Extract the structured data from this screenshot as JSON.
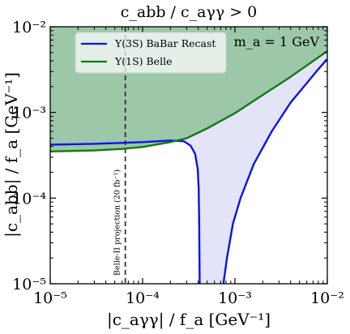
{
  "chart_data": {
    "type": "line",
    "title": "c_abb / c_aγγ > 0",
    "xlabel": "|c_aγγ| / f_a [GeV⁻¹]",
    "ylabel": "|c_abb| / f_a [GeV⁻¹]",
    "xscale": "log",
    "yscale": "log",
    "xlim": [
      1e-05,
      0.01
    ],
    "ylim": [
      1e-05,
      0.01
    ],
    "x_ticks": [
      {
        "value": 1e-05,
        "label": "10⁻⁵"
      },
      {
        "value": 0.0001,
        "label": "10⁻⁴"
      },
      {
        "value": 0.001,
        "label": "10⁻³"
      },
      {
        "value": 0.01,
        "label": "10⁻²"
      }
    ],
    "y_ticks": [
      {
        "value": 1e-05,
        "label": "10⁻⁵"
      },
      {
        "value": 0.0001,
        "label": "10⁻⁴"
      },
      {
        "value": 0.001,
        "label": "10⁻³"
      },
      {
        "value": 0.01,
        "label": "10⁻²"
      }
    ],
    "series": [
      {
        "name": "Υ(3S) BaBar Recast",
        "color": "#0a14e6",
        "segments": [
          [
            [
              1e-05,
              0.00042
            ],
            [
              3e-05,
              0.00043
            ],
            [
              0.0001,
              0.00045
            ],
            [
              0.0002,
              0.00047
            ],
            [
              0.00028,
              0.00046
            ],
            [
              0.00033,
              0.00041
            ],
            [
              0.00037,
              0.00033
            ],
            [
              0.000395,
              0.00022
            ],
            [
              0.000405,
              0.00013
            ],
            [
              0.00041,
              5e-05
            ],
            [
              0.000415,
              1e-05
            ]
          ],
          [
            [
              0.00075,
              1e-05
            ],
            [
              0.00082,
              2e-05
            ],
            [
              0.00095,
              5e-05
            ],
            [
              0.00115,
              0.0001
            ],
            [
              0.0016,
              0.00025
            ],
            [
              0.0025,
              0.0006
            ],
            [
              0.004,
              0.0013
            ],
            [
              0.006,
              0.0022
            ],
            [
              0.008,
              0.0032
            ],
            [
              0.01,
              0.0042
            ]
          ]
        ]
      },
      {
        "name": "Υ(1S) Belle",
        "color": "#127a12",
        "segments": [
          [
            [
              1e-05,
              0.00035
            ],
            [
              3e-05,
              0.00036
            ],
            [
              6e-05,
              0.000375
            ],
            [
              0.0001,
              0.000395
            ],
            [
              0.0002,
              0.00045
            ],
            [
              0.0003,
              0.0005
            ],
            [
              0.0005,
              0.00065
            ],
            [
              0.001,
              0.00098
            ],
            [
              0.002,
              0.0016
            ],
            [
              0.004,
              0.0026
            ],
            [
              0.01,
              0.0052
            ]
          ]
        ]
      }
    ],
    "excluded_region_color": "#9cc7a8",
    "allowed_region_color": "#e4e4f9",
    "reference_line": {
      "x": 6.5e-05,
      "label": "Belle-II projection (20 fb⁻¹)",
      "style": "dashed"
    },
    "annotation": "m_a = 1 GeV",
    "legend_position": "top-left",
    "grid": false
  }
}
